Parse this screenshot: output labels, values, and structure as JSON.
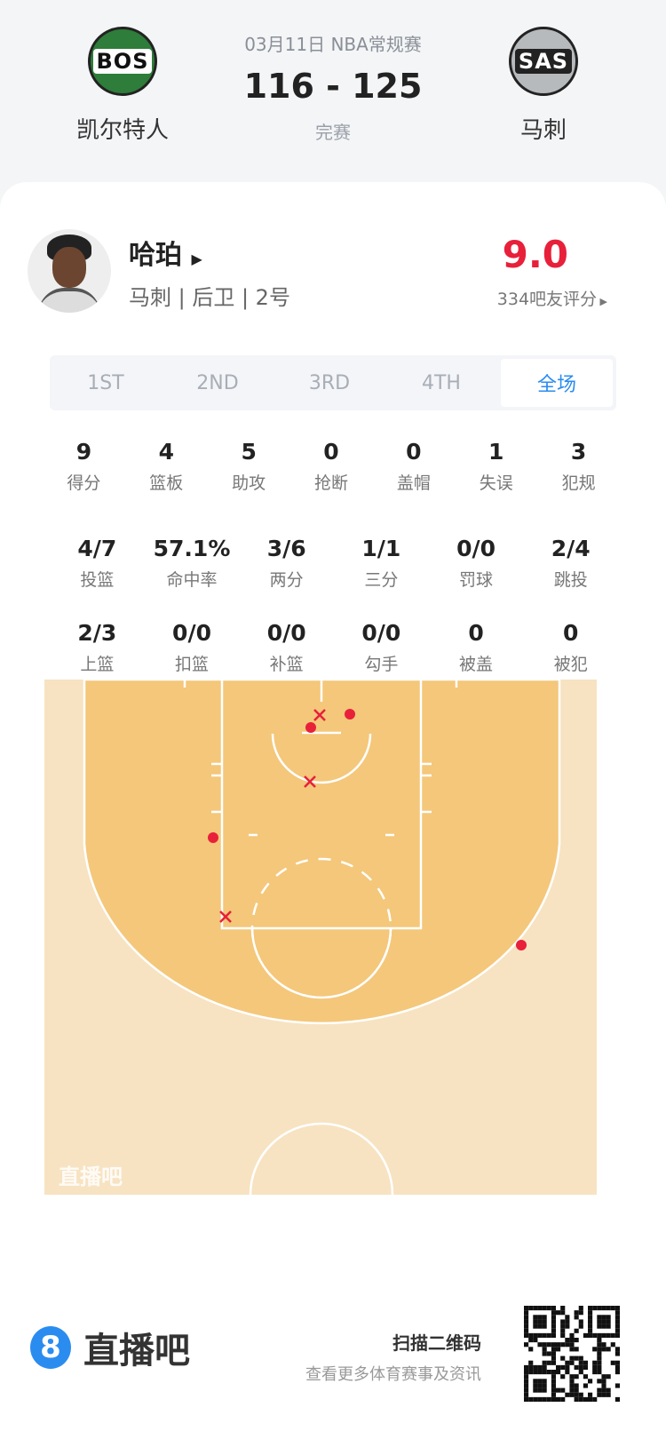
{
  "match": {
    "date_league": "03月11日 NBA常规赛",
    "score": "116 - 125",
    "status": "完赛",
    "home": {
      "abbr": "BOS",
      "name": "凯尔特人",
      "color": "#2e7d3a"
    },
    "away": {
      "abbr": "SAS",
      "name": "马刺",
      "color": "#b6babd"
    }
  },
  "player": {
    "name": "哈珀",
    "info": "马刺 | 后卫 | 2号",
    "rating": "9.0",
    "rating_count": "334吧友评分",
    "rating_color": "#e8203a"
  },
  "tabs": [
    {
      "label": "1ST"
    },
    {
      "label": "2ND"
    },
    {
      "label": "3RD"
    },
    {
      "label": "4TH"
    },
    {
      "label": "全场",
      "active": true
    }
  ],
  "stats_row1": [
    {
      "v": "9",
      "l": "得分"
    },
    {
      "v": "4",
      "l": "篮板"
    },
    {
      "v": "5",
      "l": "助攻"
    },
    {
      "v": "0",
      "l": "抢断"
    },
    {
      "v": "0",
      "l": "盖帽"
    },
    {
      "v": "1",
      "l": "失误"
    },
    {
      "v": "3",
      "l": "犯规"
    }
  ],
  "stats_row2": [
    {
      "v": "4/7",
      "l": "投篮"
    },
    {
      "v": "57.1%",
      "l": "命中率"
    },
    {
      "v": "3/6",
      "l": "两分"
    },
    {
      "v": "1/1",
      "l": "三分"
    },
    {
      "v": "0/0",
      "l": "罚球"
    },
    {
      "v": "2/4",
      "l": "跳投"
    }
  ],
  "stats_row3": [
    {
      "v": "2/3",
      "l": "上篮"
    },
    {
      "v": "0/0",
      "l": "扣篮"
    },
    {
      "v": "0/0",
      "l": "补篮"
    },
    {
      "v": "0/0",
      "l": "勾手"
    },
    {
      "v": "0",
      "l": "被盖"
    },
    {
      "v": "0",
      "l": "被犯"
    }
  ],
  "court": {
    "watermark": "直播吧",
    "shot_color": "#e8203a",
    "shots": [
      {
        "result": "made"
      },
      {
        "result": "made"
      },
      {
        "result": "made"
      },
      {
        "result": "made"
      },
      {
        "result": "missed"
      },
      {
        "result": "missed"
      },
      {
        "result": "missed"
      }
    ]
  },
  "footer": {
    "brand": "直播吧",
    "brand_badge": "8",
    "scan": "扫描二维码",
    "sub": "查看更多体育赛事及资讯"
  }
}
